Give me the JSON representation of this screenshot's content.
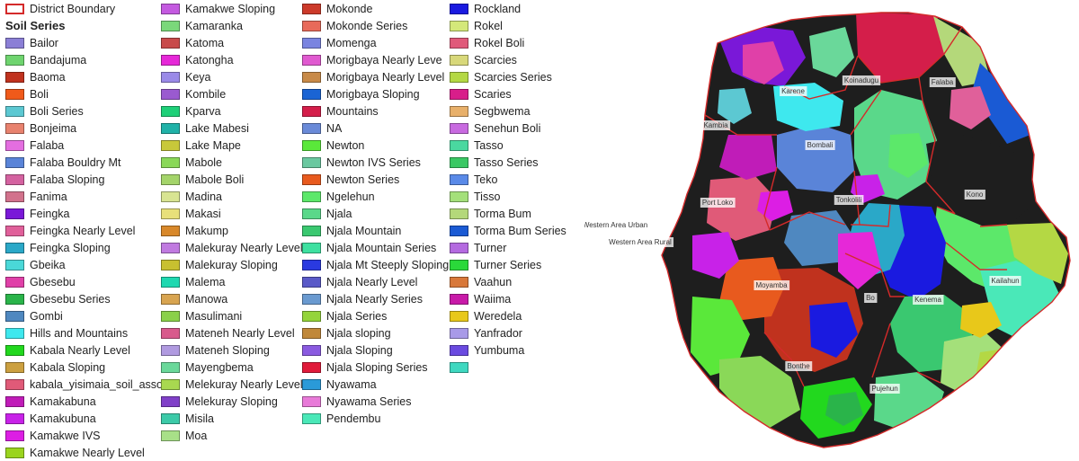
{
  "legend": {
    "boundary_label": "District Boundary",
    "boundary_color": "#d42a2a",
    "heading": "Soil Series",
    "items": [
      {
        "label": "Bailor",
        "color": "#8b7fd6"
      },
      {
        "label": "Bandajuma",
        "color": "#6fd46f"
      },
      {
        "label": "Baoma",
        "color": "#c0321e"
      },
      {
        "label": "Boli",
        "color": "#f05a1a"
      },
      {
        "label": "Boli Series",
        "color": "#5cc8d2"
      },
      {
        "label": "Bonjeima",
        "color": "#e8826e"
      },
      {
        "label": "Falaba",
        "color": "#e46ee0"
      },
      {
        "label": "Falaba Bouldry Mt",
        "color": "#5a84d8"
      },
      {
        "label": "Falaba Sloping",
        "color": "#d462a0"
      },
      {
        "label": "Fanima",
        "color": "#d2728c"
      },
      {
        "label": "Feingka",
        "color": "#7a18d8"
      },
      {
        "label": "Feingka Nearly Level",
        "color": "#e0609a"
      },
      {
        "label": "Feingka Sloping",
        "color": "#2aa8c8"
      },
      {
        "label": "Gbeika",
        "color": "#4ad8d8"
      },
      {
        "label": "Gbesebu",
        "color": "#e040a8"
      },
      {
        "label": "Gbesebu Series",
        "color": "#2ab44a"
      },
      {
        "label": "Gombi",
        "color": "#4f88c0"
      },
      {
        "label": "Hills and Mountains",
        "color": "#3ee8ee"
      },
      {
        "label": "Kabala Nearly Level",
        "color": "#22d81e"
      },
      {
        "label": "Kabala Sloping",
        "color": "#cca040"
      },
      {
        "label": "kabala_yisimaia_soil_asso",
        "color": "#e05a78"
      },
      {
        "label": "Kamakabuna",
        "color": "#c01cb8"
      },
      {
        "label": "Kamakubuna",
        "color": "#c822e8"
      },
      {
        "label": "Kamakwe IVS",
        "color": "#dc1ee4"
      },
      {
        "label": "Kamakwe Nearly Level",
        "color": "#9ad41e"
      },
      {
        "label": "Kamakwe Sloping",
        "color": "#c45ae0"
      },
      {
        "label": "Kamaranka",
        "color": "#7ad87a"
      },
      {
        "label": "Katoma",
        "color": "#c84a4a"
      },
      {
        "label": "Katongha",
        "color": "#e628d8"
      },
      {
        "label": "Keya",
        "color": "#9a8ae8"
      },
      {
        "label": "Kombile",
        "color": "#9a5ad0"
      },
      {
        "label": "Kparva",
        "color": "#1ed078"
      },
      {
        "label": "Lake Mabesi",
        "color": "#20b2a8"
      },
      {
        "label": "Lake Mape",
        "color": "#c8c83a"
      },
      {
        "label": "Mabole",
        "color": "#8ad858"
      },
      {
        "label": "Mabole Boli",
        "color": "#a4d46a"
      },
      {
        "label": "Madina",
        "color": "#d8e492"
      },
      {
        "label": "Makasi",
        "color": "#e8e07a"
      },
      {
        "label": "Makump",
        "color": "#d8882a"
      },
      {
        "label": "Malekuray Nearly Level",
        "color": "#c07ae0"
      },
      {
        "label": "Malekuray Sloping",
        "color": "#c8c030"
      },
      {
        "label": "Malema",
        "color": "#1ed8b0"
      },
      {
        "label": "Manowa",
        "color": "#d8a450"
      },
      {
        "label": "Masulimani",
        "color": "#8ad04a"
      },
      {
        "label": "Mateneh Nearly Level",
        "color": "#d85a8c"
      },
      {
        "label": "Mateneh Sloping",
        "color": "#b09ae0"
      },
      {
        "label": "Mayengbema",
        "color": "#6ad89a"
      },
      {
        "label": "Melekuray Nearly Level",
        "color": "#a8d850"
      },
      {
        "label": "Melekuray Sloping",
        "color": "#8040c8"
      },
      {
        "label": "Misila",
        "color": "#3ccaa8"
      },
      {
        "label": "Moa",
        "color": "#a8e088"
      },
      {
        "label": "Mokonde",
        "color": "#cc3a2a"
      },
      {
        "label": "Mokonde Series",
        "color": "#e86a5a"
      },
      {
        "label": "Momenga",
        "color": "#7a84e0"
      },
      {
        "label": "Morigbaya Nearly Leve",
        "color": "#e05ad0"
      },
      {
        "label": "Morigbaya Nearly Level",
        "color": "#c88a48"
      },
      {
        "label": "Morigbaya Sloping",
        "color": "#1a64d4"
      },
      {
        "label": "Mountains",
        "color": "#d41e4a"
      },
      {
        "label": "NA",
        "color": "#6a8ad8"
      },
      {
        "label": "Newton",
        "color": "#5ae83a"
      },
      {
        "label": "Newton IVS Series",
        "color": "#6ac8a0"
      },
      {
        "label": "Newton Series",
        "color": "#e85a1e"
      },
      {
        "label": "Ngelehun",
        "color": "#5ce86a"
      },
      {
        "label": "Njala",
        "color": "#5ad88a"
      },
      {
        "label": "Njala Mountain",
        "color": "#3ac870"
      },
      {
        "label": "Njala Mountain Series",
        "color": "#3ee0a0"
      },
      {
        "label": "Njala Mt Steeply Sloping",
        "color": "#2a3ae0"
      },
      {
        "label": "Njala Nearly Level",
        "color": "#5a5ac8"
      },
      {
        "label": "Njala Nearly Series",
        "color": "#6a9ad0"
      },
      {
        "label": "Njala Series",
        "color": "#94d43a"
      },
      {
        "label": "Njala sloping",
        "color": "#c0883a"
      },
      {
        "label": "Njala Sloping",
        "color": "#8a5ae0"
      },
      {
        "label": "Njala Sloping Series",
        "color": "#e01a3a"
      },
      {
        "label": "Nyawama",
        "color": "#2a9ad8"
      },
      {
        "label": "Nyawama Series",
        "color": "#e87ad8"
      },
      {
        "label": "Pendembu",
        "color": "#4ae8b8"
      },
      {
        "label": "Rockland",
        "color": "#1a1ae0"
      },
      {
        "label": "Rokel",
        "color": "#d4e87a"
      },
      {
        "label": "Rokel Boli",
        "color": "#e05a7a"
      },
      {
        "label": "Scarcies",
        "color": "#d8d87a"
      },
      {
        "label": "Scarcies Series",
        "color": "#b4d844"
      },
      {
        "label": "Scaries",
        "color": "#d81e8a"
      },
      {
        "label": "Segbwema",
        "color": "#e8b06a"
      },
      {
        "label": "Senehun Boli",
        "color": "#c86ae0"
      },
      {
        "label": "Tasso",
        "color": "#4ad8a0"
      },
      {
        "label": "Tasso Series",
        "color": "#3ac864"
      },
      {
        "label": "Teko",
        "color": "#5a8ae8"
      },
      {
        "label": "Tisso",
        "color": "#a4e07a"
      },
      {
        "label": "Torma Bum",
        "color": "#b4d87a"
      },
      {
        "label": "Torma Bum Series",
        "color": "#1a5ad4"
      },
      {
        "label": "Turner",
        "color": "#b46ae0"
      },
      {
        "label": "Turner Series",
        "color": "#2ad83a"
      },
      {
        "label": "Vaahun",
        "color": "#d8783a"
      },
      {
        "label": "Waiima",
        "color": "#c81aa8"
      },
      {
        "label": "Weredela",
        "color": "#e8c81a"
      },
      {
        "label": "Yanfrador",
        "color": "#a89ae8"
      },
      {
        "label": "Yumbuma",
        "color": "#6a4ae0"
      },
      {
        "label": "",
        "color": "#3ed8c0"
      }
    ]
  },
  "map": {
    "districts": [
      "Karene",
      "Koinadugu",
      "Falaba",
      "Kambia",
      "Bombali",
      "Tonkolili",
      "Kono",
      "Port Loko",
      "Western Area Urban",
      "Western Area Rural",
      "Moyamba",
      "Bo",
      "Kenema",
      "Kailahun",
      "Bonthe",
      "Pujehun"
    ],
    "land_color": "#1e1e1e",
    "boundary_color": "#d42a2a"
  }
}
